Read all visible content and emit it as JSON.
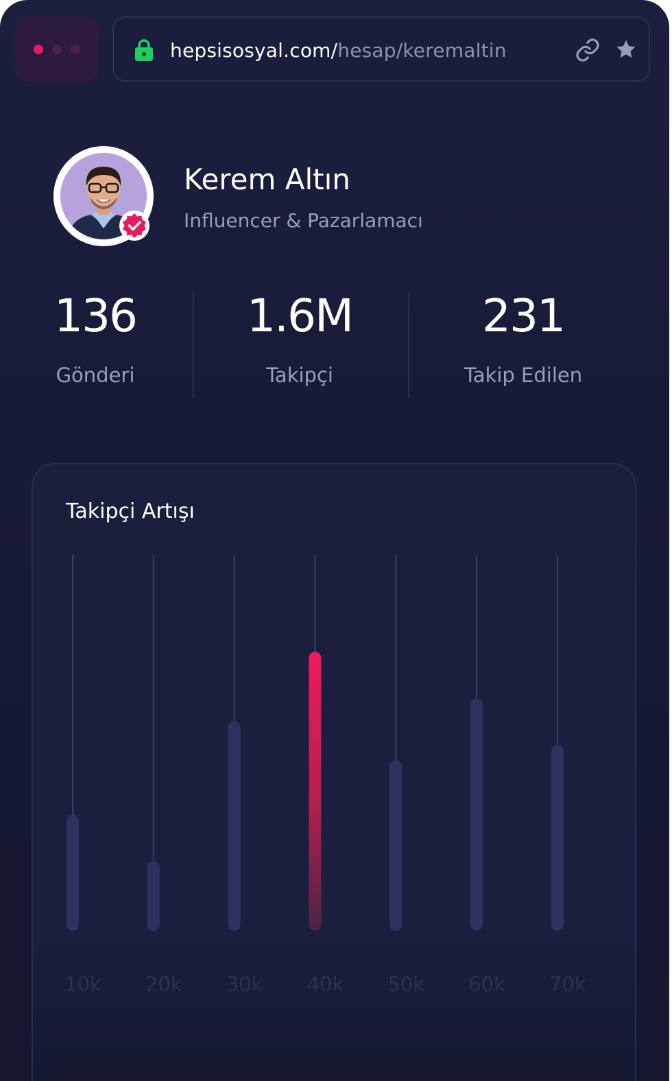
{
  "browser": {
    "window_dots": [
      "#e8195f",
      "#4b2349",
      "#4b2349"
    ],
    "url_domain": "hepsisosyal.com/",
    "url_path": "hesap/keremaltin",
    "lock_icon": "lock-icon",
    "lock_color": "#1fd05f",
    "link_icon": "link-icon",
    "star_icon": "star-icon"
  },
  "profile": {
    "name": "Kerem Altın",
    "role": "Influencer & Pazarlamacı",
    "verified_icon": "verified-badge-icon",
    "accent": "#e8195f"
  },
  "stats": [
    {
      "value": "136",
      "label": "Gönderi"
    },
    {
      "value": "1.6M",
      "label": "Takipçi"
    },
    {
      "value": "231",
      "label": "Takip Edilen"
    }
  ],
  "chart_card": {
    "title": "Takipçi Artışı"
  },
  "chart_data": {
    "type": "bar",
    "title": "Takipçi Artışı",
    "categories": [
      "10k",
      "20k",
      "30k",
      "40k",
      "50k",
      "60k",
      "70k"
    ],
    "values": [
      30,
      18,
      54,
      72,
      44,
      60,
      48
    ],
    "ylim": [
      0,
      97
    ],
    "highlight_index": 3,
    "highlight_color": "#e8195f",
    "bar_color": "#2e3260",
    "grid": false
  }
}
